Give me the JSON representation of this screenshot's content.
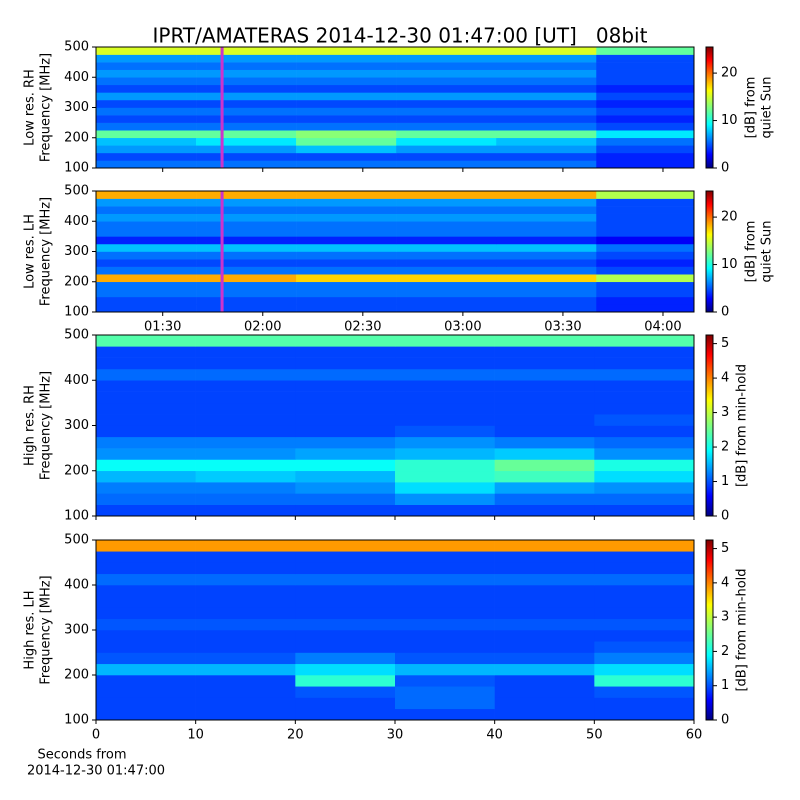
{
  "title": "IPRT/AMATERAS 2014-12-30 01:47:00 [UT]   08bit",
  "chart_data": [
    {
      "type": "heatmap",
      "colormap": "jet",
      "ylabel": [
        "Low res. RH",
        "Frequency [MHz]"
      ],
      "colorbar_label": [
        "[dB] from",
        "quiet Sun"
      ],
      "xlim": [
        70,
        249.3
      ],
      "xticks": [
        {
          "value": 90,
          "label": "01:30"
        },
        {
          "value": 120,
          "label": "02:00"
        },
        {
          "value": 150,
          "label": "02:30"
        },
        {
          "value": 180,
          "label": "03:00"
        },
        {
          "value": 210,
          "label": "03:30"
        },
        {
          "value": 240,
          "label": "04:00"
        }
      ],
      "xtick_labels": false,
      "ylim": [
        100,
        500
      ],
      "yticks": [
        100,
        200,
        300,
        400,
        500
      ],
      "clim": [
        0,
        25.5
      ],
      "cticks": [
        0,
        10,
        20
      ],
      "marker": {
        "x": 107.8,
        "color": "#cc33cc"
      },
      "x_edges": [
        70,
        100,
        130,
        160,
        190,
        220,
        249.3
      ],
      "y_edges": [
        100,
        125,
        150,
        175,
        200,
        225,
        250,
        275,
        300,
        325,
        350,
        375,
        400,
        425,
        450,
        475,
        500
      ],
      "z": [
        [
          6,
          6,
          6,
          6,
          6,
          4
        ],
        [
          5,
          5,
          5,
          5,
          5,
          4
        ],
        [
          7,
          7,
          8,
          7,
          7,
          5
        ],
        [
          8,
          9,
          12,
          9,
          8,
          6
        ],
        [
          12,
          12,
          13,
          12,
          12,
          9
        ],
        [
          6,
          6,
          6,
          6,
          6,
          5
        ],
        [
          5,
          5,
          5,
          5,
          5,
          4
        ],
        [
          6,
          6,
          6,
          6,
          6,
          5
        ],
        [
          5,
          5,
          5,
          5,
          5,
          4
        ],
        [
          7,
          7,
          7,
          7,
          7,
          5
        ],
        [
          5,
          5,
          5,
          5,
          5,
          4
        ],
        [
          6,
          6,
          6,
          6,
          6,
          5
        ],
        [
          7,
          7,
          7,
          7,
          7,
          5
        ],
        [
          6,
          6,
          6,
          6,
          6,
          5
        ],
        [
          7,
          7,
          7,
          7,
          7,
          5
        ],
        [
          15,
          15,
          15,
          15,
          15,
          12
        ]
      ]
    },
    {
      "type": "heatmap",
      "colormap": "jet",
      "ylabel": [
        "Low res. LH",
        "Frequency [MHz]"
      ],
      "colorbar_label": [
        "[dB] from",
        "quiet Sun"
      ],
      "xlim": [
        70,
        249.3
      ],
      "xticks": [
        {
          "value": 90,
          "label": "01:30"
        },
        {
          "value": 120,
          "label": "02:00"
        },
        {
          "value": 150,
          "label": "02:30"
        },
        {
          "value": 180,
          "label": "03:00"
        },
        {
          "value": 210,
          "label": "03:30"
        },
        {
          "value": 240,
          "label": "04:00"
        }
      ],
      "xtick_labels": true,
      "ylim": [
        100,
        500
      ],
      "yticks": [
        100,
        200,
        300,
        400,
        500
      ],
      "clim": [
        0,
        25.5
      ],
      "cticks": [
        0,
        10,
        20
      ],
      "marker": {
        "x": 107.8,
        "color": "#cc33cc"
      },
      "x_edges": [
        70,
        100,
        130,
        160,
        190,
        220,
        249.3
      ],
      "y_edges": [
        100,
        125,
        150,
        175,
        200,
        225,
        250,
        275,
        300,
        325,
        350,
        375,
        400,
        425,
        450,
        475,
        500
      ],
      "z": [
        [
          5,
          5,
          5,
          5,
          5,
          4
        ],
        [
          5,
          5,
          5,
          5,
          5,
          4
        ],
        [
          6,
          6,
          6,
          6,
          6,
          5
        ],
        [
          6,
          6,
          6,
          6,
          6,
          5
        ],
        [
          18,
          18,
          17,
          17,
          17,
          14
        ],
        [
          6,
          6,
          6,
          6,
          6,
          5
        ],
        [
          5,
          5,
          5,
          5,
          5,
          4
        ],
        [
          6,
          6,
          6,
          6,
          6,
          5
        ],
        [
          8,
          8,
          8,
          8,
          8,
          6
        ],
        [
          4,
          4,
          4,
          4,
          4,
          3
        ],
        [
          6,
          6,
          6,
          6,
          6,
          5
        ],
        [
          6,
          6,
          6,
          6,
          6,
          5
        ],
        [
          7,
          7,
          7,
          7,
          7,
          5
        ],
        [
          6,
          6,
          6,
          6,
          6,
          5
        ],
        [
          7,
          7,
          7,
          7,
          7,
          5
        ],
        [
          18,
          18,
          18,
          18,
          18,
          14
        ]
      ]
    },
    {
      "type": "heatmap",
      "colormap": "jet",
      "ylabel": [
        "High res. RH",
        "Frequency [MHz]"
      ],
      "colorbar_label": [
        "[dB] from min-hold"
      ],
      "xlim": [
        0,
        60
      ],
      "xticks": [
        0,
        10,
        20,
        30,
        40,
        50,
        60
      ],
      "xtick_labels": false,
      "ylim": [
        100,
        500
      ],
      "yticks": [
        100,
        200,
        300,
        400,
        500
      ],
      "clim": [
        0,
        5.25
      ],
      "cticks": [
        0,
        1,
        2,
        3,
        4,
        5
      ],
      "x_edges": [
        0,
        10,
        20,
        30,
        40,
        50,
        60
      ],
      "y_edges": [
        100,
        125,
        150,
        175,
        200,
        225,
        250,
        275,
        300,
        325,
        350,
        375,
        400,
        425,
        450,
        475,
        500
      ],
      "z": [
        [
          1,
          1,
          1,
          1,
          1,
          1
        ],
        [
          1.2,
          1.2,
          1.2,
          1.4,
          1.2,
          1.2
        ],
        [
          1.3,
          1.3,
          1.4,
          1.8,
          1.5,
          1.4
        ],
        [
          1.6,
          1.7,
          1.6,
          2.2,
          2.3,
          1.8
        ],
        [
          2,
          2,
          2,
          2.2,
          2.5,
          2.1
        ],
        [
          1.4,
          1.4,
          1.5,
          1.6,
          1.7,
          1.4
        ],
        [
          1.3,
          1.3,
          1.3,
          1.4,
          1.3,
          1.2
        ],
        [
          1,
          1,
          1,
          1.1,
          1,
          1
        ],
        [
          1,
          1,
          1,
          1,
          1,
          1.1
        ],
        [
          1,
          1,
          1,
          1,
          1,
          1
        ],
        [
          1,
          1,
          1,
          1,
          1,
          1
        ],
        [
          1,
          1,
          1,
          1,
          1,
          1
        ],
        [
          1.2,
          1.2,
          1.2,
          1.2,
          1.2,
          1.2
        ],
        [
          1,
          1,
          1,
          1,
          1,
          1
        ],
        [
          1,
          1,
          1,
          1,
          1,
          1
        ],
        [
          2.4,
          2.4,
          2.4,
          2.4,
          2.4,
          2.4
        ]
      ]
    },
    {
      "type": "heatmap",
      "colormap": "jet",
      "ylabel": [
        "High res. LH",
        "Frequency [MHz]"
      ],
      "colorbar_label": [
        "[dB] from min-hold"
      ],
      "xlim": [
        0,
        60
      ],
      "xticks": [
        0,
        10,
        20,
        30,
        40,
        50,
        60
      ],
      "xtick_labels": true,
      "xlabel": [
        "Seconds from",
        "2014-12-30 01:47:00"
      ],
      "ylim": [
        100,
        500
      ],
      "yticks": [
        100,
        200,
        300,
        400,
        500
      ],
      "clim": [
        0,
        5.25
      ],
      "cticks": [
        0,
        1,
        2,
        3,
        4,
        5
      ],
      "x_edges": [
        0,
        10,
        20,
        30,
        40,
        50,
        60
      ],
      "y_edges": [
        100,
        125,
        150,
        175,
        200,
        225,
        250,
        275,
        300,
        325,
        350,
        375,
        400,
        425,
        450,
        475,
        500
      ],
      "z": [
        [
          1,
          1,
          1,
          1,
          1,
          1
        ],
        [
          1,
          1,
          1,
          1.2,
          1,
          1
        ],
        [
          1,
          1,
          1.1,
          1.2,
          1,
          1.1
        ],
        [
          1,
          1,
          2.2,
          1.1,
          1,
          2.2
        ],
        [
          1.6,
          1.6,
          1.8,
          1.6,
          1.6,
          1.8
        ],
        [
          1.1,
          1.1,
          1.3,
          1.1,
          1.1,
          1.3
        ],
        [
          1,
          1,
          1,
          1,
          1,
          1.1
        ],
        [
          1,
          1,
          1,
          1,
          1,
          1
        ],
        [
          1.1,
          1.1,
          1.1,
          1.1,
          1.1,
          1.1
        ],
        [
          1,
          1,
          1,
          1,
          1,
          1
        ],
        [
          1,
          1,
          1,
          1,
          1,
          1
        ],
        [
          1,
          1,
          1,
          1,
          1,
          1
        ],
        [
          1.2,
          1.2,
          1.2,
          1.2,
          1.2,
          1.2
        ],
        [
          1,
          1,
          1,
          1,
          1,
          1
        ],
        [
          1,
          1,
          1,
          1,
          1,
          1
        ],
        [
          3.8,
          3.8,
          3.8,
          3.8,
          3.8,
          3.8
        ]
      ]
    }
  ]
}
